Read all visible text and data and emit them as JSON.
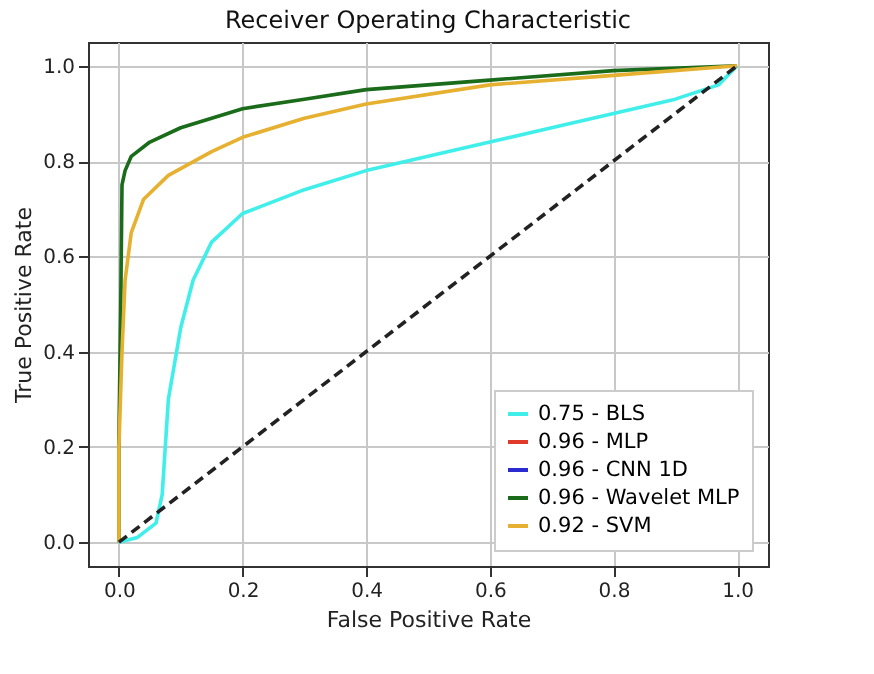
{
  "chart_data": {
    "type": "line",
    "title": "Receiver Operating Characteristic",
    "xlabel": "False Positive Rate",
    "ylabel": "True Positive Rate",
    "xlim": [
      -0.05,
      1.05
    ],
    "ylim": [
      -0.05,
      1.05
    ],
    "xticks": [
      {
        "value": 0,
        "label": "0.0"
      },
      {
        "value": 0.2,
        "label": "0.2"
      },
      {
        "value": 0.4,
        "label": "0.4"
      },
      {
        "value": 0.6,
        "label": "0.6"
      },
      {
        "value": 0.8,
        "label": "0.8"
      },
      {
        "value": 1,
        "label": "1.0"
      }
    ],
    "yticks": [
      {
        "value": 0,
        "label": "0.0"
      },
      {
        "value": 0.2,
        "label": "0.2"
      },
      {
        "value": 0.4,
        "label": "0.4"
      },
      {
        "value": 0.6,
        "label": "0.6"
      },
      {
        "value": 0.8,
        "label": "0.8"
      },
      {
        "value": 1,
        "label": "1.0"
      }
    ],
    "grid": true,
    "legend": "bottom right",
    "series": [
      {
        "name": "0.75 - BLS",
        "color": "#40eeea",
        "x": [
          0,
          0.03,
          0.06,
          0.07,
          0.08,
          0.1,
          0.12,
          0.15,
          0.2,
          0.3,
          0.4,
          0.5,
          0.6,
          0.7,
          0.8,
          0.9,
          0.97,
          1
        ],
        "values": [
          0,
          0.01,
          0.04,
          0.1,
          0.3,
          0.45,
          0.55,
          0.63,
          0.69,
          0.74,
          0.78,
          0.81,
          0.84,
          0.87,
          0.9,
          0.93,
          0.96,
          1
        ]
      },
      {
        "name": "0.96 - MLP",
        "color": "#e03a2a"
      },
      {
        "name": "0.96 - CNN 1D",
        "color": "#2b2bd0"
      },
      {
        "name": "0.96 - Wavelet MLP",
        "color": "#1a6b1a",
        "x": [
          0,
          0,
          0.003,
          0.005,
          0.01,
          0.02,
          0.05,
          0.1,
          0.2,
          0.3,
          0.4,
          0.6,
          0.8,
          1
        ],
        "values": [
          0,
          0.22,
          0.5,
          0.75,
          0.78,
          0.81,
          0.84,
          0.87,
          0.91,
          0.93,
          0.95,
          0.97,
          0.99,
          1
        ]
      },
      {
        "name": "0.92 - SVM",
        "color": "#e6b030",
        "x": [
          0,
          0,
          0.005,
          0.01,
          0.02,
          0.04,
          0.08,
          0.15,
          0.2,
          0.3,
          0.4,
          0.6,
          0.8,
          1
        ],
        "values": [
          0,
          0.2,
          0.4,
          0.55,
          0.65,
          0.72,
          0.77,
          0.82,
          0.85,
          0.89,
          0.92,
          0.96,
          0.98,
          1
        ]
      },
      {
        "color": "#222222",
        "line_style": "dashed",
        "x": [
          0,
          1
        ],
        "values": [
          0,
          1
        ]
      }
    ]
  }
}
